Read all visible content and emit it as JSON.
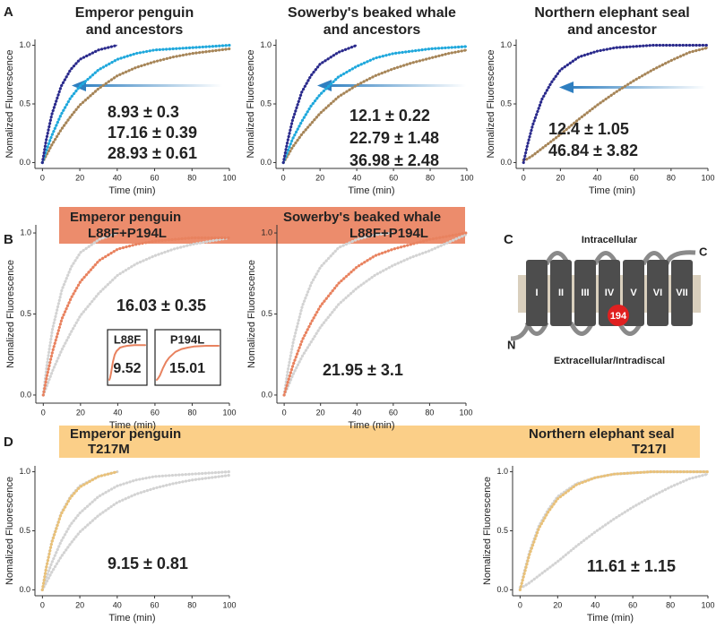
{
  "panels": [
    "A",
    "B",
    "C",
    "D"
  ],
  "diagram": {
    "top_label": "Intracellular",
    "bottom_label": "Extracellular/Intradiscal",
    "n_term": "N",
    "c_term": "C",
    "helices": [
      "I",
      "II",
      "III",
      "IV",
      "V",
      "VI",
      "VII"
    ],
    "site": "194"
  },
  "chart_data": [
    {
      "type": "line",
      "title": [
        "Emperor penguin",
        "and ancestors"
      ],
      "xlabel": "Time (min)",
      "ylabel": "Nomalized Fluorescence",
      "x": [
        0,
        2,
        5,
        10,
        15,
        20,
        30,
        40,
        50,
        60,
        70,
        80,
        90,
        100
      ],
      "xlim": [
        -4,
        100
      ],
      "ylim": [
        -0.05,
        1.05
      ],
      "xticks": [
        0,
        20,
        40,
        60,
        80,
        100
      ],
      "yticks": [
        {
          "value": 0,
          "label": "0.0"
        },
        {
          "value": 0.5,
          "label": "0.5"
        },
        {
          "value": 1,
          "label": "1.0"
        }
      ],
      "annotations": [
        "8.93 ± 0.3",
        "17.16 ± 0.39",
        "28.93 ± 0.61"
      ],
      "series": [
        {
          "color": "#a68558",
          "values": [
            0,
            0.06,
            0.15,
            0.28,
            0.39,
            0.49,
            0.63,
            0.74,
            0.81,
            0.86,
            0.9,
            0.93,
            0.95,
            0.97
          ]
        },
        {
          "color": "#1fa8dc",
          "values": [
            0,
            0.1,
            0.23,
            0.41,
            0.55,
            0.65,
            0.79,
            0.88,
            0.93,
            0.96,
            0.97,
            0.98,
            0.99,
            1.0
          ]
        },
        {
          "color": "#2b2a8c",
          "values": [
            0,
            0.19,
            0.41,
            0.65,
            0.79,
            0.88,
            0.96,
            1.0,
            null,
            null,
            null,
            null,
            null,
            null
          ]
        }
      ]
    },
    {
      "type": "line",
      "title": [
        "Sowerby's beaked whale",
        "and ancestors"
      ],
      "xlabel": "Time (min)",
      "ylabel": "Nomalized Fluorescence",
      "x": [
        0,
        2,
        5,
        10,
        15,
        20,
        30,
        40,
        50,
        60,
        70,
        80,
        90,
        100
      ],
      "xlim": [
        -4,
        100
      ],
      "ylim": [
        -0.05,
        1.05
      ],
      "xticks": [
        0,
        20,
        40,
        60,
        80,
        100
      ],
      "yticks": [
        {
          "value": 0,
          "label": "0.0"
        },
        {
          "value": 0.5,
          "label": "0.5"
        },
        {
          "value": 1,
          "label": "1.0"
        }
      ],
      "annotations": [
        "12.1 ± 0.22",
        "22.79 ± 1.48",
        "36.98 ± 2.48"
      ],
      "series": [
        {
          "color": "#a68558",
          "values": [
            0,
            0.05,
            0.13,
            0.24,
            0.33,
            0.42,
            0.56,
            0.66,
            0.74,
            0.8,
            0.85,
            0.89,
            0.93,
            0.96
          ]
        },
        {
          "color": "#1fa8dc",
          "values": [
            0,
            0.08,
            0.2,
            0.35,
            0.48,
            0.58,
            0.73,
            0.82,
            0.89,
            0.93,
            0.95,
            0.97,
            0.98,
            0.99
          ]
        },
        {
          "color": "#2b2a8c",
          "values": [
            0,
            0.16,
            0.36,
            0.6,
            0.74,
            0.84,
            0.94,
            1.0,
            null,
            null,
            null,
            null,
            null,
            null
          ]
        }
      ]
    },
    {
      "type": "line",
      "title": [
        "Northern elephant seal",
        "and ancestor"
      ],
      "xlabel": "Time (min)",
      "ylabel": "Nomalized Fluorescence",
      "x": [
        0,
        2,
        5,
        10,
        15,
        20,
        30,
        40,
        50,
        60,
        70,
        80,
        90,
        100
      ],
      "xlim": [
        -4,
        100
      ],
      "ylim": [
        -0.05,
        1.05
      ],
      "xticks": [
        0,
        20,
        40,
        60,
        80,
        100
      ],
      "yticks": [
        {
          "value": 0,
          "label": "0.0"
        },
        {
          "value": 0.5,
          "label": "0.5"
        },
        {
          "value": 1,
          "label": "1.0"
        }
      ],
      "annotations": [
        "12.4 ± 1.05",
        "46.84 ± 3.82"
      ],
      "series": [
        {
          "color": "#a68558",
          "values": [
            0.02,
            0.03,
            0.06,
            0.12,
            0.18,
            0.24,
            0.37,
            0.49,
            0.6,
            0.7,
            0.79,
            0.87,
            0.94,
            0.98
          ]
        },
        {
          "color": "#2b2a8c",
          "values": [
            0,
            0.14,
            0.32,
            0.54,
            0.68,
            0.79,
            0.9,
            0.95,
            0.98,
            0.99,
            1,
            1,
            1,
            1
          ]
        }
      ]
    },
    {
      "type": "line",
      "title": [
        "Emperor penguin",
        "L88F+P194L"
      ],
      "xlabel": "Time (min)",
      "ylabel": "Nomalized Fluorescence",
      "x": [
        0,
        2,
        5,
        10,
        15,
        20,
        30,
        40,
        50,
        60,
        70,
        80,
        90,
        100
      ],
      "xlim": [
        -4,
        100
      ],
      "ylim": [
        -0.05,
        1.05
      ],
      "xticks": [
        0,
        20,
        40,
        60,
        80,
        100
      ],
      "yticks": [
        {
          "value": 0,
          "label": "0.0"
        },
        {
          "value": 0.5,
          "label": "0.5"
        },
        {
          "value": 1,
          "label": "1.0"
        }
      ],
      "annotations": [
        "16.03 ± 0.35"
      ],
      "series": [
        {
          "color": "#d3d3d3",
          "values": [
            0,
            0.19,
            0.41,
            0.65,
            0.79,
            0.88,
            0.96,
            1.0,
            null,
            null,
            null,
            null,
            null,
            null
          ]
        },
        {
          "color": "#d3d3d3",
          "values": [
            0,
            0.06,
            0.15,
            0.28,
            0.39,
            0.49,
            0.63,
            0.74,
            0.81,
            0.86,
            0.9,
            0.93,
            0.95,
            0.97
          ]
        },
        {
          "color": "#e8825f",
          "values": [
            0,
            0.12,
            0.27,
            0.47,
            0.6,
            0.7,
            0.83,
            0.9,
            0.93,
            0.95,
            0.96,
            0.97,
            0.97,
            0.97
          ]
        }
      ]
    },
    {
      "type": "line",
      "title": [
        "L88F"
      ],
      "x": [
        0,
        2,
        5,
        10,
        15,
        20,
        30,
        40,
        50,
        60,
        70,
        80,
        90,
        100
      ],
      "xlim": [
        0,
        100
      ],
      "ylim": [
        -0.1,
        1.3
      ],
      "annotations": [
        "9.52"
      ],
      "series": [
        {
          "color": "#e8825f",
          "values": [
            0,
            0.05,
            0.2,
            0.5,
            0.7,
            0.8,
            0.9,
            0.93,
            0.95,
            0.96,
            0.97,
            0.97,
            0.97,
            0.97
          ]
        }
      ]
    },
    {
      "type": "line",
      "title": [
        "P194L"
      ],
      "x": [
        0,
        2,
        5,
        10,
        15,
        20,
        30,
        40,
        50,
        60,
        70,
        80,
        90,
        100
      ],
      "xlim": [
        0,
        100
      ],
      "ylim": [
        -0.1,
        1.3
      ],
      "annotations": [
        "15.01"
      ],
      "series": [
        {
          "color": "#e8825f",
          "values": [
            0,
            0.04,
            0.12,
            0.33,
            0.5,
            0.62,
            0.78,
            0.86,
            0.9,
            0.93,
            0.94,
            0.95,
            0.95,
            0.95
          ]
        }
      ]
    },
    {
      "type": "line",
      "title": [
        "Sowerby's beaked whale",
        "L88F+P194L"
      ],
      "xlabel": "Time (min)",
      "ylabel": "Nomalized Fluorescence",
      "x": [
        0,
        2,
        5,
        10,
        15,
        20,
        30,
        40,
        50,
        60,
        70,
        80,
        90,
        100
      ],
      "xlim": [
        -4,
        100
      ],
      "ylim": [
        -0.05,
        1.05
      ],
      "xticks": [
        0,
        20,
        40,
        60,
        80,
        100
      ],
      "yticks": [
        {
          "value": 0,
          "label": "0.0"
        },
        {
          "value": 0.5,
          "label": "0.5"
        },
        {
          "value": 1,
          "label": "1.0"
        }
      ],
      "annotations": [
        "21.95 ± 3.1"
      ],
      "series": [
        {
          "color": "#d3d3d3",
          "values": [
            0,
            0.15,
            0.33,
            0.55,
            0.69,
            0.79,
            0.91,
            0.96,
            0.99,
            1.0,
            null,
            null,
            null,
            null
          ]
        },
        {
          "color": "#d3d3d3",
          "values": [
            0,
            0.05,
            0.13,
            0.24,
            0.33,
            0.42,
            0.56,
            0.66,
            0.74,
            0.8,
            0.85,
            0.89,
            0.94,
            0.99
          ]
        },
        {
          "color": "#e8825f",
          "values": [
            0,
            0.08,
            0.19,
            0.34,
            0.45,
            0.55,
            0.69,
            0.79,
            0.86,
            0.9,
            0.93,
            0.96,
            0.98,
            1.0
          ]
        }
      ]
    },
    {
      "type": "line",
      "title": [
        "Emperor penguin",
        "T217M"
      ],
      "xlabel": "Time (min)",
      "ylabel": "Nomalized Fluorescence",
      "x": [
        0,
        2,
        5,
        10,
        15,
        20,
        30,
        40,
        50,
        60,
        70,
        80,
        90,
        100
      ],
      "xlim": [
        -4,
        100
      ],
      "ylim": [
        -0.05,
        1.05
      ],
      "xticks": [
        0,
        20,
        40,
        60,
        80,
        100
      ],
      "yticks": [
        {
          "value": 0,
          "label": "0.0"
        },
        {
          "value": 0.5,
          "label": "0.5"
        },
        {
          "value": 1,
          "label": "1.0"
        }
      ],
      "annotations": [
        "9.15 ± 0.81"
      ],
      "series": [
        {
          "color": "#d3d3d3",
          "values": [
            0,
            0.06,
            0.15,
            0.28,
            0.39,
            0.49,
            0.63,
            0.74,
            0.81,
            0.86,
            0.9,
            0.93,
            0.95,
            0.97
          ]
        },
        {
          "color": "#d3d3d3",
          "values": [
            0,
            0.1,
            0.23,
            0.41,
            0.55,
            0.65,
            0.79,
            0.88,
            0.93,
            0.96,
            0.97,
            0.98,
            0.99,
            1.0
          ]
        },
        {
          "color": "#d3d3d3",
          "values": [
            0,
            0.19,
            0.41,
            0.65,
            0.79,
            0.88,
            0.96,
            1.0,
            null,
            null,
            null,
            null,
            null,
            null
          ]
        },
        {
          "color": "#e9c078",
          "values": [
            0,
            0.18,
            0.4,
            0.64,
            0.78,
            0.87,
            0.96,
            1.0,
            null,
            null,
            null,
            null,
            null,
            null
          ]
        }
      ]
    },
    {
      "type": "line",
      "title": [
        "Northern elephant seal",
        "T217I"
      ],
      "xlabel": "Time (min)",
      "ylabel": "Nomalized Fluorescence",
      "x": [
        0,
        2,
        5,
        10,
        15,
        20,
        30,
        40,
        50,
        60,
        70,
        80,
        90,
        100
      ],
      "xlim": [
        -4,
        100
      ],
      "ylim": [
        -0.05,
        1.05
      ],
      "xticks": [
        0,
        20,
        40,
        60,
        80,
        100
      ],
      "yticks": [
        {
          "value": 0,
          "label": "0.0"
        },
        {
          "value": 0.5,
          "label": "0.5"
        },
        {
          "value": 1,
          "label": "1.0"
        }
      ],
      "annotations": [
        "11.61 ± 1.15"
      ],
      "series": [
        {
          "color": "#d3d3d3",
          "values": [
            0.02,
            0.03,
            0.06,
            0.12,
            0.18,
            0.24,
            0.37,
            0.49,
            0.6,
            0.7,
            0.79,
            0.87,
            0.94,
            0.98
          ]
        },
        {
          "color": "#d3d3d3",
          "values": [
            0,
            0.14,
            0.32,
            0.54,
            0.68,
            0.79,
            0.9,
            0.95,
            0.98,
            0.99,
            1,
            1,
            1,
            1
          ]
        },
        {
          "color": "#e9c078",
          "values": [
            0,
            0.12,
            0.3,
            0.52,
            0.66,
            0.77,
            0.89,
            0.95,
            0.98,
            0.99,
            1,
            1,
            1,
            1
          ]
        }
      ]
    }
  ]
}
